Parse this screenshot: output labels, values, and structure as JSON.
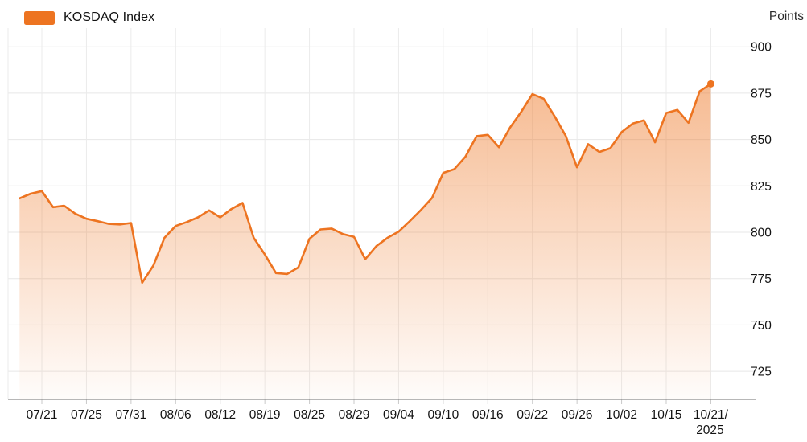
{
  "legend": {
    "label": "KOSDAQ Index",
    "swatch_color": "#ED7421"
  },
  "y_axis": {
    "title": "Points",
    "tick_values": [
      900,
      875,
      850,
      825,
      800,
      775,
      750,
      725
    ]
  },
  "x_axis": {
    "tick_labels": [
      "07/21",
      "07/25",
      "07/31",
      "08/06",
      "08/12",
      "08/19",
      "08/25",
      "08/29",
      "09/04",
      "09/10",
      "09/16",
      "09/22",
      "09/26",
      "10/02",
      "10/15",
      "10/21/2025"
    ]
  },
  "chart_data": {
    "type": "area",
    "title": "KOSDAQ Index",
    "ylabel": "Points",
    "legend_position": "top-left",
    "grid": true,
    "line_color": "#ED7421",
    "fill_gradient_top": "rgba(237,116,33,0.50)",
    "fill_gradient_bottom": "rgba(237,116,33,0.02)",
    "end_dot": true,
    "last_value": 880,
    "ylim": [
      712,
      912
    ],
    "x_tick_labels": [
      "07/21",
      "07/25",
      "07/31",
      "08/06",
      "08/12",
      "08/19",
      "08/25",
      "08/29",
      "09/04",
      "09/10",
      "09/16",
      "09/22",
      "09/26",
      "10/02",
      "10/15",
      "10/21/2025"
    ],
    "x_tick_point_indices": [
      2,
      6,
      10,
      14,
      18,
      22,
      26,
      30,
      34,
      38,
      42,
      46,
      50,
      54,
      58,
      62
    ],
    "series": [
      {
        "name": "KOSDAQ Index",
        "values": [
          818.3,
          820.8,
          822.2,
          813.5,
          814.3,
          810.0,
          807.3,
          806.0,
          804.5,
          804.2,
          805.0,
          772.8,
          782.0,
          797.0,
          803.4,
          805.5,
          808.0,
          811.8,
          808.0,
          812.5,
          815.8,
          797.0,
          788.0,
          778.0,
          777.5,
          781.0,
          796.5,
          801.5,
          802.0,
          799.0,
          797.5,
          785.5,
          792.5,
          797.0,
          800.3,
          806.0,
          812.0,
          818.5,
          832.0,
          834.0,
          840.8,
          851.8,
          852.5,
          845.8,
          856.5,
          865.0,
          874.5,
          872.0,
          862.5,
          851.8,
          835.0,
          847.5,
          843.3,
          845.3,
          854.0,
          858.6,
          860.3,
          848.5,
          864.3,
          866.0,
          859.0,
          876.0,
          880.0
        ]
      }
    ]
  }
}
